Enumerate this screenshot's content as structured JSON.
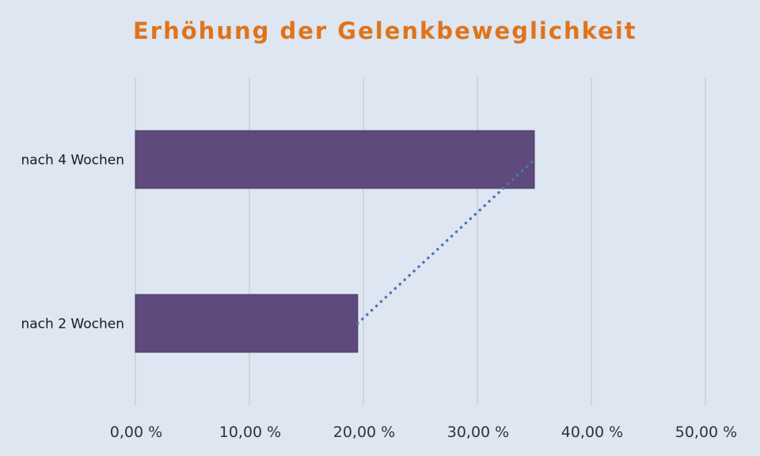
{
  "chart_data": {
    "type": "bar",
    "orientation": "horizontal",
    "title": "Erhöhung der Gelenkbeweglichkeit",
    "categories": [
      "nach 2 Wochen",
      "nach 4 Wochen"
    ],
    "values": [
      19.5,
      35.0
    ],
    "xlim": [
      0,
      50
    ],
    "x_ticks": [
      0,
      10,
      20,
      30,
      40,
      50
    ],
    "x_tick_labels": [
      "0,00 %",
      "10,00 %",
      "20,00 %",
      "30,00 %",
      "40,00 %",
      "50,00 %"
    ],
    "xlabel": "",
    "ylabel": "",
    "grid": "vertical",
    "trendline": "linear, dotted",
    "colors": {
      "bar": "#5e4a7c",
      "trendline": "#4a76b8",
      "title": "#e0731a",
      "grid": "#c9ced6",
      "background": "#dde6f1"
    }
  }
}
